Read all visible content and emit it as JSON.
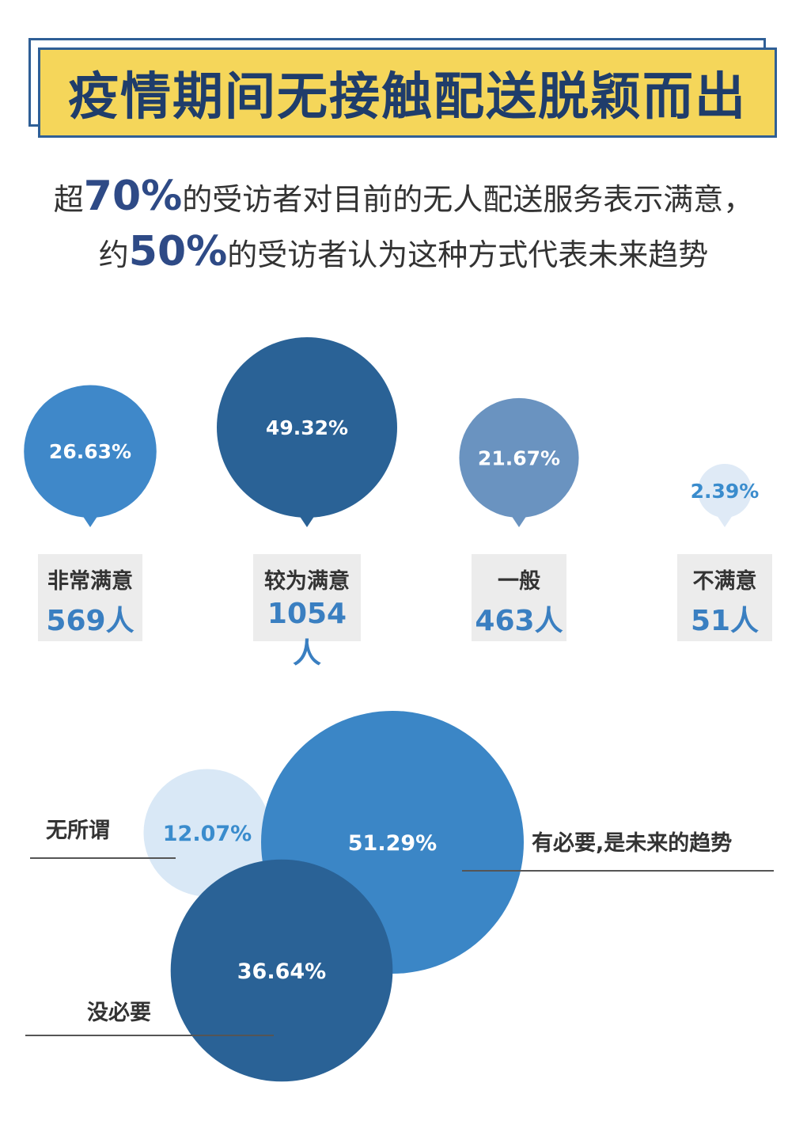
{
  "title": "疫情期间无接触配送脱颖而出",
  "subtitle": {
    "line1": {
      "prefix": "超",
      "highlight": "70%",
      "suffix": "的受访者对目前的无人配送服务表示满意，"
    },
    "line2": {
      "prefix": "约",
      "highlight": "50%",
      "suffix": "的受访者认为这种方式代表未来趋势"
    }
  },
  "chart_data": [
    {
      "type": "bubble",
      "title": "",
      "categories": [
        "非常满意",
        "较为满意",
        "一般",
        "不满意"
      ],
      "values": [
        26.63,
        49.32,
        21.67,
        2.39
      ],
      "value_labels": [
        "26.63%",
        "49.32%",
        "21.67%",
        "2.39%"
      ],
      "counts": [
        "569人",
        "1054人",
        "463人",
        "51人"
      ],
      "colors": [
        "#3f88c9",
        "#2a6296",
        "#6a93c0",
        "#dfeaf6"
      ],
      "label_colors": [
        "#ffffff",
        "#ffffff",
        "#ffffff",
        "#3a8ccd"
      ]
    },
    {
      "type": "bubble",
      "title": "",
      "categories": [
        "无所谓",
        "有必要，是未来的趋势",
        "没必要"
      ],
      "display_names": [
        "无所谓",
        "有必要,是未来的趋势",
        "没必要"
      ],
      "values": [
        12.07,
        51.29,
        36.64
      ],
      "value_labels": [
        "12.07%",
        "51.29%",
        "36.64%"
      ],
      "colors": [
        "#d9e8f6",
        "#3b86c6",
        "#2a6296"
      ],
      "label_colors": [
        "#3a8ccd",
        "#ffffff",
        "#ffffff"
      ]
    }
  ]
}
